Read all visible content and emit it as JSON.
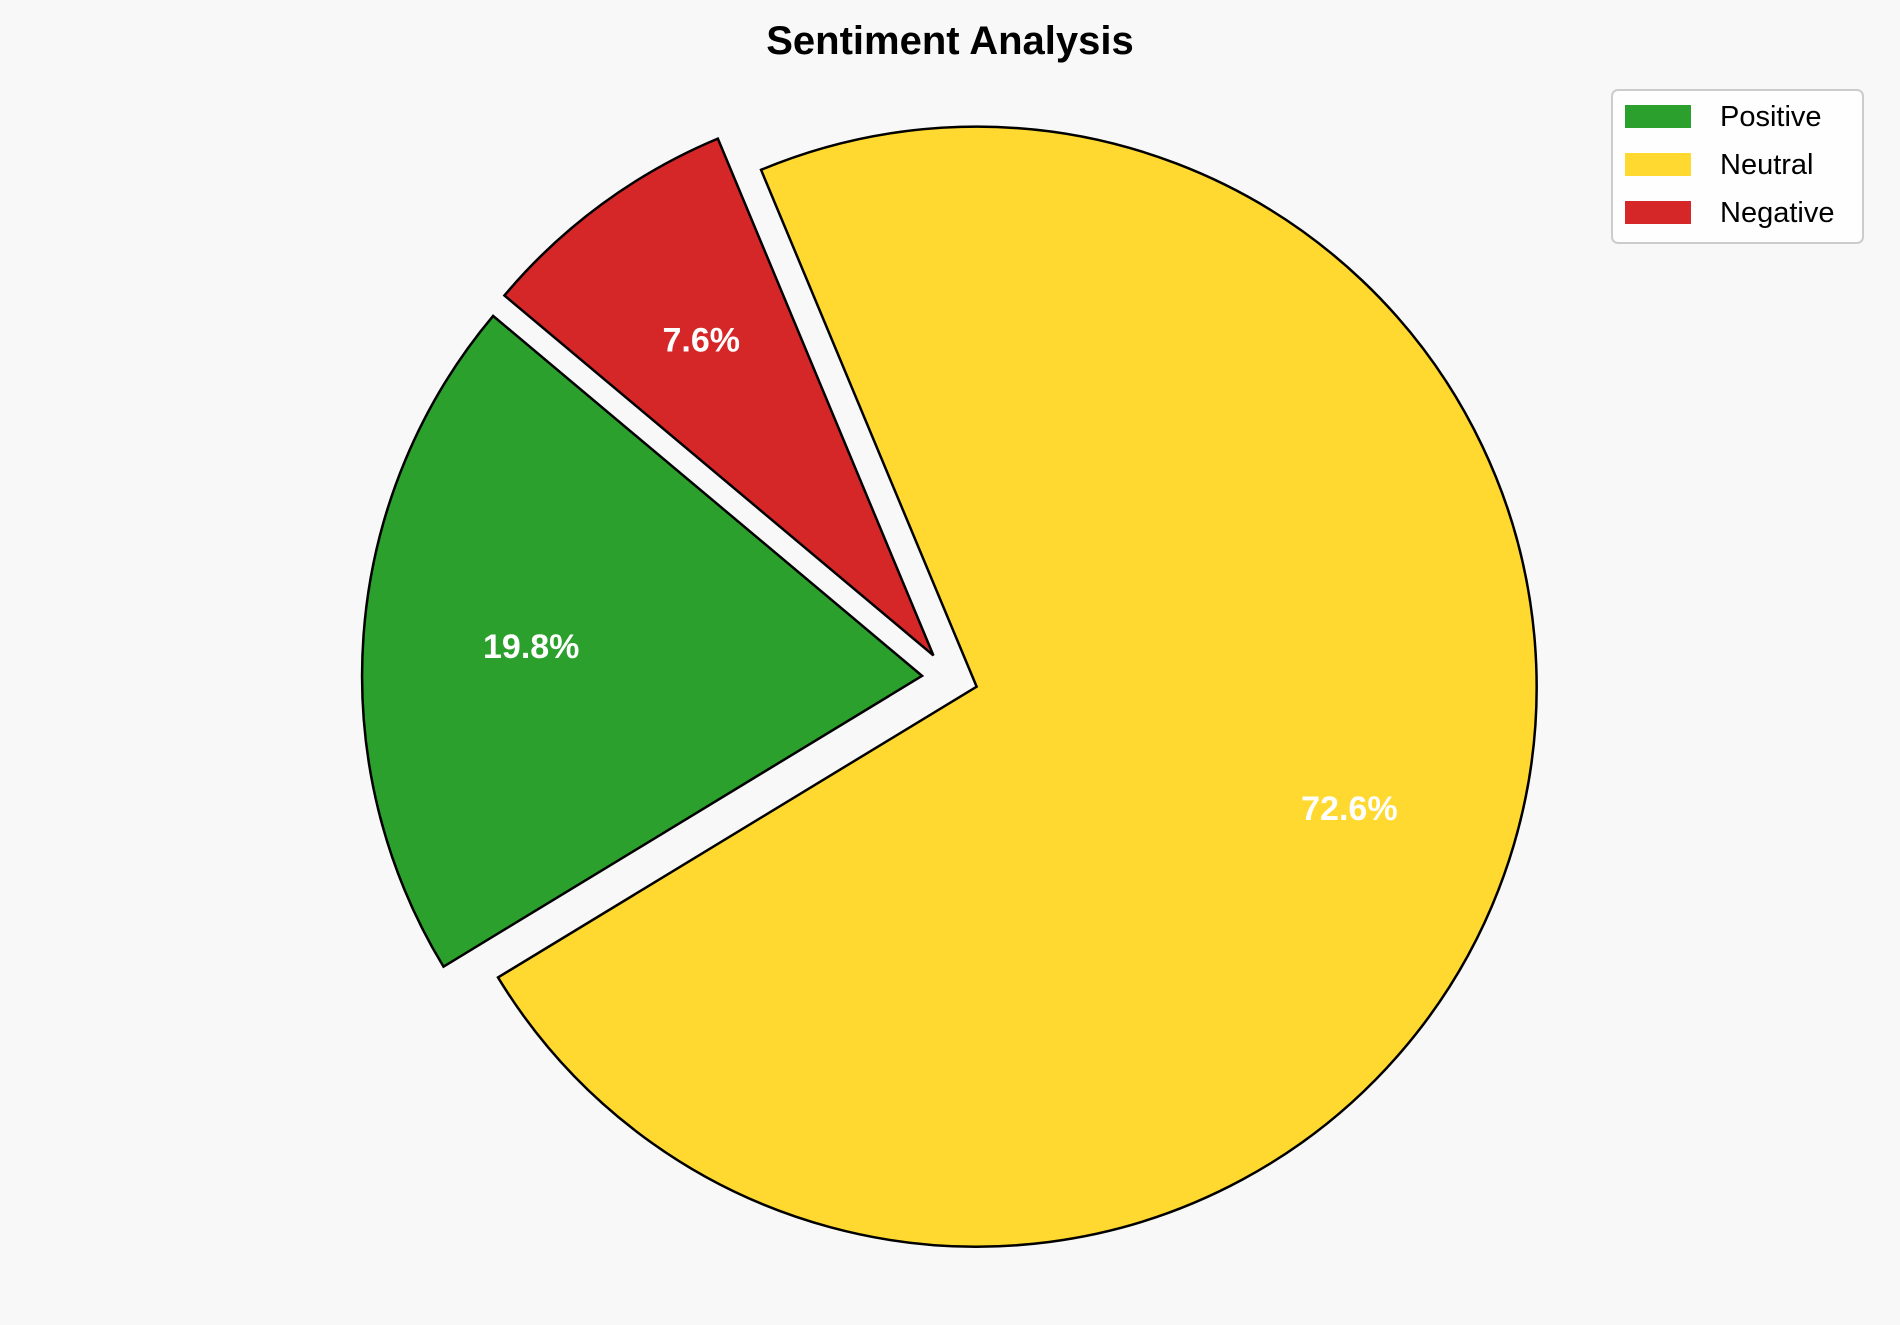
{
  "chart_data": {
    "type": "pie",
    "title": "Sentiment Analysis",
    "categories": [
      "Positive",
      "Neutral",
      "Negative"
    ],
    "values": [
      19.8,
      72.6,
      7.6
    ],
    "labels": [
      "19.8%",
      "72.6%",
      "7.6%"
    ],
    "colors": [
      "#2ca02c",
      "#ffd92f",
      "#d62728"
    ],
    "start_angle_deg": 140,
    "counterclockwise": true,
    "explode": [
      0.05,
      0.05,
      0.05
    ],
    "edge_color": "#000000",
    "legend_position": "top-right",
    "legend": [
      "Positive",
      "Neutral",
      "Negative"
    ]
  }
}
